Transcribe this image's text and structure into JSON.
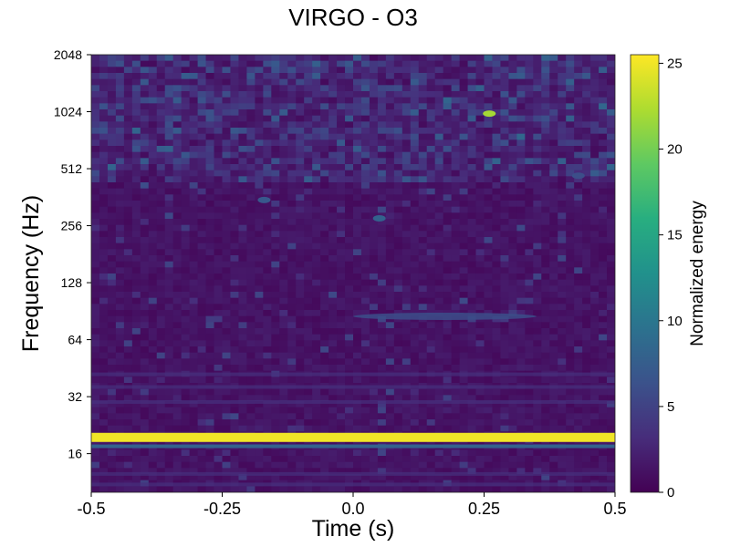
{
  "chart_data": {
    "type": "heatmap",
    "title": "VIRGO - O3",
    "xlabel": "Time (s)",
    "ylabel": "Frequency (Hz)",
    "xlim": [
      -0.5,
      0.5
    ],
    "ylim": [
      10,
      2048
    ],
    "yscale": "log2",
    "x_ticks": [
      -0.5,
      -0.25,
      0.0,
      0.25,
      0.5
    ],
    "x_tick_labels": [
      "-0.5",
      "-0.25",
      "0.0",
      "0.25",
      "0.5"
    ],
    "y_ticks": [
      16,
      32,
      64,
      128,
      256,
      512,
      1024,
      2048
    ],
    "y_tick_labels": [
      "16",
      "32",
      "64",
      "128",
      "256",
      "512",
      "1024",
      "2048"
    ],
    "colorbar": {
      "label": "Normalized energy",
      "range": [
        0,
        25.5
      ],
      "ticks": [
        0,
        5,
        10,
        15,
        20,
        25
      ],
      "tick_labels": [
        "0",
        "5",
        "10",
        "15",
        "20",
        "25"
      ],
      "colormap": "viridis",
      "colors": [
        "#440154",
        "#472d7b",
        "#3b528b",
        "#2c728e",
        "#21918c",
        "#28ae80",
        "#5ec962",
        "#addc30",
        "#fde725"
      ]
    },
    "features": [
      {
        "description": "persistent line",
        "frequency": 19.5,
        "x_range": [
          -0.5,
          0.5
        ],
        "energy": 25
      },
      {
        "description": "weak band",
        "frequency": 17.5,
        "x_range": [
          -0.5,
          0.5
        ],
        "energy": 8
      },
      {
        "description": "blip",
        "time": 0.26,
        "frequency": 1000,
        "energy": 22
      },
      {
        "description": "blip",
        "time": 0.05,
        "frequency": 280,
        "energy": 8
      },
      {
        "description": "blip",
        "time": -0.17,
        "frequency": 350,
        "energy": 7
      },
      {
        "description": "blip",
        "time": 0.43,
        "frequency": 470,
        "energy": 6
      },
      {
        "description": "band",
        "time_range": [
          0.0,
          0.35
        ],
        "frequency": 85,
        "energy": 6
      }
    ]
  }
}
